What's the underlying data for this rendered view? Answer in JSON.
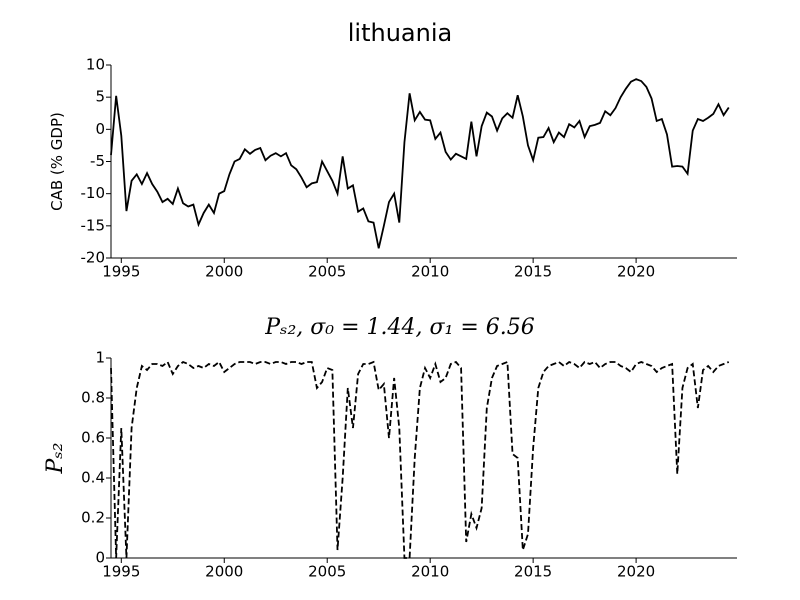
{
  "chart_data": [
    {
      "type": "line",
      "title": "lithuania",
      "ylabel": "CAB (% GDP)",
      "color": "#000000",
      "linestyle": "solid",
      "x": [
        1994.5,
        1994.75,
        1995,
        1995.25,
        1995.5,
        1995.75,
        1996,
        1996.25,
        1996.5,
        1996.75,
        1997,
        1997.25,
        1997.5,
        1997.75,
        1998,
        1998.25,
        1998.5,
        1998.75,
        1999,
        1999.25,
        1999.5,
        1999.75,
        2000,
        2000.25,
        2000.5,
        2000.75,
        2001,
        2001.25,
        2001.5,
        2001.75,
        2002,
        2002.25,
        2002.5,
        2002.75,
        2003,
        2003.25,
        2003.5,
        2003.75,
        2004,
        2004.25,
        2004.5,
        2004.75,
        2005,
        2005.25,
        2005.5,
        2005.75,
        2006,
        2006.25,
        2006.5,
        2006.75,
        2007,
        2007.25,
        2007.5,
        2007.75,
        2008,
        2008.25,
        2008.5,
        2008.75,
        2009,
        2009.25,
        2009.5,
        2009.75,
        2010,
        2010.25,
        2010.5,
        2010.75,
        2011,
        2011.25,
        2011.5,
        2011.75,
        2012,
        2012.25,
        2012.5,
        2012.75,
        2013,
        2013.25,
        2013.5,
        2013.75,
        2014,
        2014.25,
        2014.5,
        2014.75,
        2015,
        2015.25,
        2015.5,
        2015.75,
        2016,
        2016.25,
        2016.5,
        2016.75,
        2017,
        2017.25,
        2017.5,
        2017.75,
        2018,
        2018.25,
        2018.5,
        2018.75,
        2019,
        2019.25,
        2019.5,
        2019.75,
        2020,
        2020.25,
        2020.5,
        2020.75,
        2021,
        2021.25,
        2021.5,
        2021.75,
        2022,
        2022.25,
        2022.5,
        2022.75,
        2023,
        2023.25,
        2023.5,
        2023.75,
        2024,
        2024.25,
        2024.5
      ],
      "values": [
        -4,
        5.2,
        -1,
        -12.7,
        -8,
        -7,
        -8.5,
        -6.8,
        -8.5,
        -9.7,
        -11.3,
        -10.8,
        -11.6,
        -9.2,
        -11.5,
        -12,
        -11.7,
        -14.8,
        -13,
        -11.7,
        -13,
        -10,
        -9.6,
        -7,
        -5,
        -4.6,
        -3.1,
        -3.8,
        -3.2,
        -2.9,
        -4.8,
        -4.1,
        -3.7,
        -4.2,
        -3.7,
        -5.6,
        -6.2,
        -7.5,
        -9,
        -8.4,
        -8.2,
        -5,
        -6.5,
        -8,
        -10,
        -4.2,
        -9.2,
        -8.7,
        -12.8,
        -12.3,
        -14.3,
        -14.5,
        -18.5,
        -15,
        -11.3,
        -10,
        -14.5,
        -2,
        5.6,
        1.4,
        2.7,
        1.5,
        1.4,
        -1.5,
        -0.5,
        -3.5,
        -4.7,
        -3.8,
        -4.2,
        -4.6,
        1.2,
        -4.2,
        0.5,
        2.6,
        2,
        -0.2,
        1.7,
        2.5,
        1.8,
        5.3,
        2,
        -2.5,
        -4.8,
        -1.3,
        -1.2,
        0.2,
        -2,
        -0.5,
        -1.2,
        0.8,
        0.3,
        1.3,
        -1.2,
        0.5,
        0.7,
        1,
        2.8,
        2.2,
        3.3,
        5,
        6.3,
        7.4,
        7.8,
        7.5,
        6.6,
        4.8,
        1.3,
        1.6,
        -0.8,
        -5.8,
        -5.7,
        -5.8,
        -6.9,
        -0.2,
        1.6,
        1.3,
        1.8,
        2.4,
        3.9,
        2.2,
        3.4
      ],
      "xlim": [
        1994.5,
        2024.9
      ],
      "xticks": [
        1995,
        2000,
        2005,
        2010,
        2015,
        2020
      ],
      "ylim": [
        -20,
        10
      ],
      "yticks": [
        -20,
        -15,
        -10,
        -5,
        0,
        5,
        10
      ]
    },
    {
      "type": "line",
      "title": "Pₛ₂, σ₀ = 1.44, σ₁ = 6.56",
      "ylabel": "Pₛ₂",
      "color": "#000000",
      "linestyle": "dashed",
      "x": [
        1994.5,
        1994.75,
        1995,
        1995.25,
        1995.5,
        1995.75,
        1996,
        1996.25,
        1996.5,
        1996.75,
        1997,
        1997.25,
        1997.5,
        1997.75,
        1998,
        1998.25,
        1998.5,
        1998.75,
        1999,
        1999.25,
        1999.5,
        1999.75,
        2000,
        2000.25,
        2000.5,
        2000.75,
        2001,
        2001.25,
        2001.5,
        2001.75,
        2002,
        2002.25,
        2002.5,
        2002.75,
        2003,
        2003.25,
        2003.5,
        2003.75,
        2004,
        2004.25,
        2004.5,
        2004.75,
        2005,
        2005.25,
        2005.5,
        2005.75,
        2006,
        2006.25,
        2006.5,
        2006.75,
        2007,
        2007.25,
        2007.5,
        2007.75,
        2008,
        2008.25,
        2008.5,
        2008.75,
        2009,
        2009.25,
        2009.5,
        2009.75,
        2010,
        2010.25,
        2010.5,
        2010.75,
        2011,
        2011.25,
        2011.5,
        2011.75,
        2012,
        2012.25,
        2012.5,
        2012.75,
        2013,
        2013.25,
        2013.5,
        2013.75,
        2014,
        2014.25,
        2014.5,
        2014.75,
        2015,
        2015.25,
        2015.5,
        2015.75,
        2016,
        2016.25,
        2016.5,
        2016.75,
        2017,
        2017.25,
        2017.5,
        2017.75,
        2018,
        2018.25,
        2018.5,
        2018.75,
        2019,
        2019.25,
        2019.5,
        2019.75,
        2020,
        2020.25,
        2020.5,
        2020.75,
        2021,
        2021.25,
        2021.5,
        2021.75,
        2022,
        2022.25,
        2022.5,
        2022.75,
        2023,
        2023.25,
        2023.5,
        2023.75,
        2024,
        2024.25,
        2024.5
      ],
      "values": [
        0.95,
        0.0,
        0.65,
        0.0,
        0.65,
        0.85,
        0.96,
        0.94,
        0.97,
        0.97,
        0.96,
        0.98,
        0.92,
        0.96,
        0.98,
        0.97,
        0.95,
        0.96,
        0.95,
        0.97,
        0.96,
        0.98,
        0.93,
        0.95,
        0.97,
        0.98,
        0.98,
        0.98,
        0.97,
        0.98,
        0.98,
        0.97,
        0.98,
        0.98,
        0.97,
        0.98,
        0.98,
        0.97,
        0.98,
        0.98,
        0.85,
        0.88,
        0.95,
        0.94,
        0.04,
        0.4,
        0.85,
        0.65,
        0.92,
        0.97,
        0.97,
        0.98,
        0.84,
        0.87,
        0.6,
        0.9,
        0.65,
        0.0,
        0.0,
        0.5,
        0.85,
        0.95,
        0.9,
        0.97,
        0.88,
        0.9,
        0.97,
        0.98,
        0.95,
        0.08,
        0.22,
        0.15,
        0.25,
        0.75,
        0.9,
        0.96,
        0.97,
        0.98,
        0.52,
        0.5,
        0.04,
        0.12,
        0.55,
        0.85,
        0.93,
        0.96,
        0.97,
        0.98,
        0.96,
        0.98,
        0.97,
        0.95,
        0.98,
        0.97,
        0.98,
        0.95,
        0.97,
        0.98,
        0.98,
        0.96,
        0.95,
        0.93,
        0.97,
        0.98,
        0.97,
        0.96,
        0.93,
        0.95,
        0.96,
        0.97,
        0.42,
        0.85,
        0.95,
        0.97,
        0.75,
        0.94,
        0.96,
        0.93,
        0.96,
        0.97,
        0.98
      ],
      "xlim": [
        1994.5,
        2024.9
      ],
      "xticks": [
        1995,
        2000,
        2005,
        2010,
        2015,
        2020
      ],
      "ylim": [
        0,
        1
      ],
      "yticks": [
        0,
        0.2,
        0.4,
        0.6,
        0.8,
        1
      ]
    }
  ]
}
